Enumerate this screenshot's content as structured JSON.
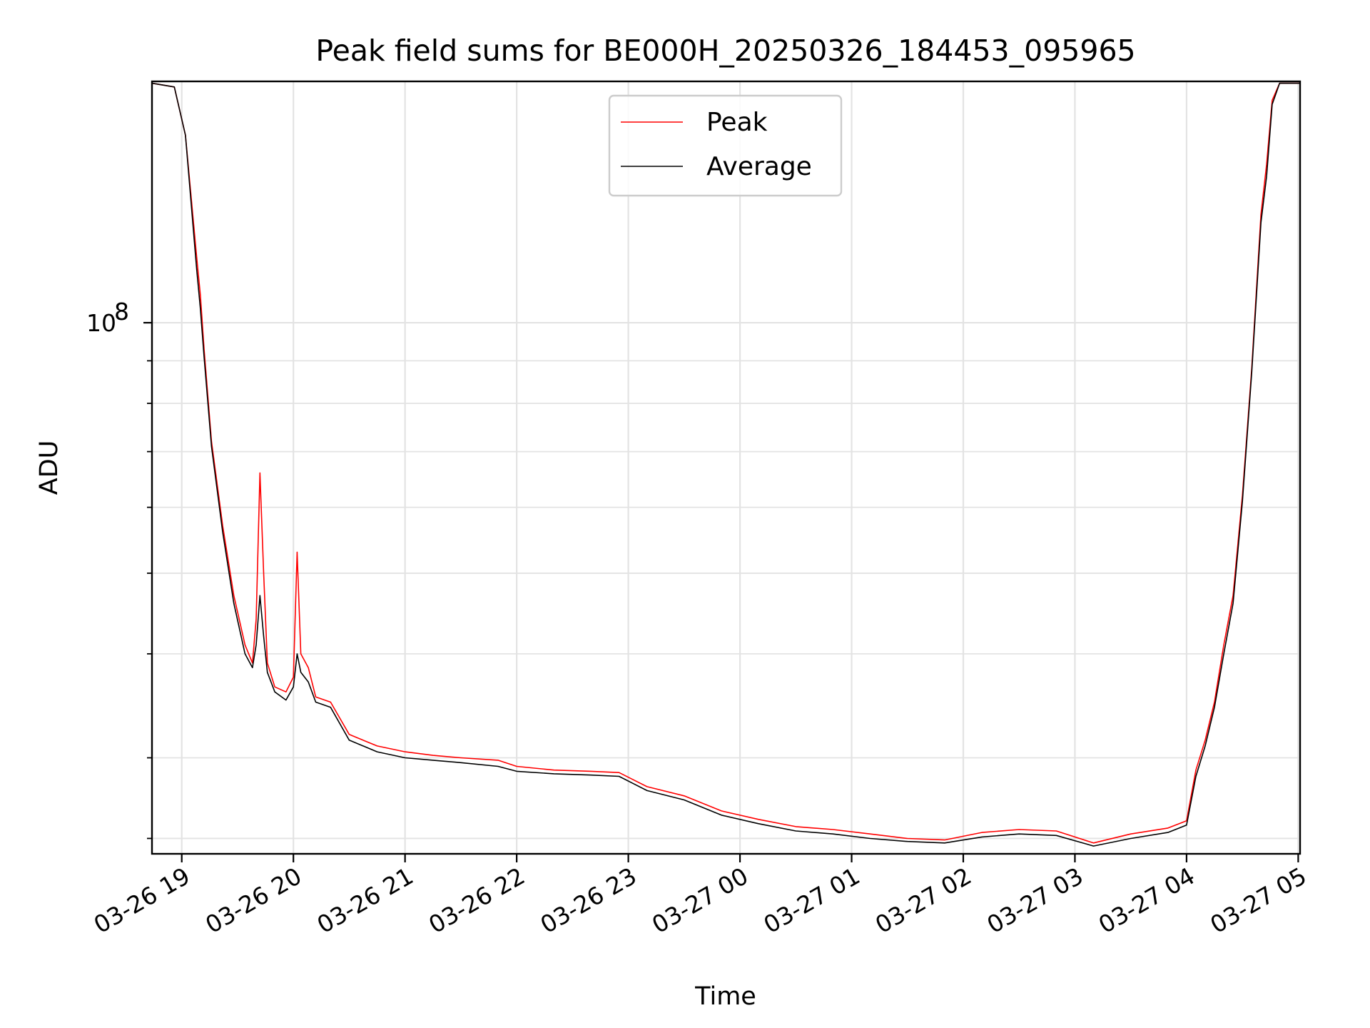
{
  "chart_data": {
    "type": "line",
    "title": "Peak field sums for BE000H_20250326_184453_095965",
    "xlabel": "Time",
    "ylabel": "ADU",
    "x_scale": "time",
    "y_scale": "log",
    "xlim": [
      "2025-03-26 18:44",
      "2025-03-27 05:01"
    ],
    "ylim": [
      23000000,
      195000000
    ],
    "x_ticks": [
      {
        "label": "03-26 19",
        "value": "2025-03-26 19:00"
      },
      {
        "label": "03-26 20",
        "value": "2025-03-26 20:00"
      },
      {
        "label": "03-26 21",
        "value": "2025-03-26 21:00"
      },
      {
        "label": "03-26 22",
        "value": "2025-03-26 22:00"
      },
      {
        "label": "03-26 23",
        "value": "2025-03-26 23:00"
      },
      {
        "label": "03-27 00",
        "value": "2025-03-27 00:00"
      },
      {
        "label": "03-27 01",
        "value": "2025-03-27 01:00"
      },
      {
        "label": "03-27 02",
        "value": "2025-03-27 02:00"
      },
      {
        "label": "03-27 03",
        "value": "2025-03-27 03:00"
      },
      {
        "label": "03-27 04",
        "value": "2025-03-27 04:00"
      },
      {
        "label": "03-27 05",
        "value": "2025-03-27 05:00"
      }
    ],
    "y_ticks": [
      {
        "base": "10",
        "exp": "8",
        "value": 100000000
      }
    ],
    "y_minor_ticks": [
      24000000,
      30000000,
      40000000,
      50000000,
      60000000,
      70000000,
      80000000,
      90000000,
      200000000
    ],
    "grid": true,
    "legend_position": "upper center",
    "series": [
      {
        "name": "Peak",
        "color": "#ff0000",
        "points": [
          [
            "2025-03-26 18:44",
            194000000
          ],
          [
            "2025-03-26 18:56",
            192000000
          ],
          [
            "2025-03-26 19:02",
            168000000
          ],
          [
            "2025-03-26 19:08",
            120000000
          ],
          [
            "2025-03-26 19:10",
            108000000
          ],
          [
            "2025-03-26 19:12",
            93000000
          ],
          [
            "2025-03-26 19:16",
            72000000
          ],
          [
            "2025-03-26 19:22",
            57000000
          ],
          [
            "2025-03-26 19:28",
            47000000
          ],
          [
            "2025-03-26 19:34",
            41000000
          ],
          [
            "2025-03-26 19:38",
            39000000
          ],
          [
            "2025-03-26 19:40",
            44000000
          ],
          [
            "2025-03-26 19:42",
            66000000
          ],
          [
            "2025-03-26 19:44",
            50000000
          ],
          [
            "2025-03-26 19:46",
            39000000
          ],
          [
            "2025-03-26 19:50",
            36500000
          ],
          [
            "2025-03-26 19:56",
            36000000
          ],
          [
            "2025-03-26 20:00",
            37500000
          ],
          [
            "2025-03-26 20:02",
            53000000
          ],
          [
            "2025-03-26 20:04",
            40000000
          ],
          [
            "2025-03-26 20:08",
            38500000
          ],
          [
            "2025-03-26 20:12",
            35500000
          ],
          [
            "2025-03-26 20:20",
            35000000
          ],
          [
            "2025-03-26 20:30",
            32000000
          ],
          [
            "2025-03-26 20:45",
            31000000
          ],
          [
            "2025-03-26 21:00",
            30500000
          ],
          [
            "2025-03-26 21:15",
            30200000
          ],
          [
            "2025-03-26 21:30",
            30000000
          ],
          [
            "2025-03-26 21:50",
            29800000
          ],
          [
            "2025-03-26 22:00",
            29300000
          ],
          [
            "2025-03-26 22:20",
            29000000
          ],
          [
            "2025-03-26 22:40",
            28900000
          ],
          [
            "2025-03-26 22:55",
            28800000
          ],
          [
            "2025-03-26 23:10",
            27700000
          ],
          [
            "2025-03-26 23:30",
            27000000
          ],
          [
            "2025-03-26 23:50",
            25900000
          ],
          [
            "2025-03-27 00:10",
            25300000
          ],
          [
            "2025-03-27 00:30",
            24800000
          ],
          [
            "2025-03-27 00:50",
            24600000
          ],
          [
            "2025-03-27 01:10",
            24300000
          ],
          [
            "2025-03-27 01:30",
            24000000
          ],
          [
            "2025-03-27 01:50",
            23900000
          ],
          [
            "2025-03-27 02:10",
            24400000
          ],
          [
            "2025-03-27 02:30",
            24600000
          ],
          [
            "2025-03-27 02:50",
            24500000
          ],
          [
            "2025-03-27 03:10",
            23700000
          ],
          [
            "2025-03-27 03:30",
            24300000
          ],
          [
            "2025-03-27 03:50",
            24700000
          ],
          [
            "2025-03-27 04:00",
            25200000
          ],
          [
            "2025-03-27 04:05",
            29000000
          ],
          [
            "2025-03-27 04:10",
            31500000
          ],
          [
            "2025-03-27 04:15",
            35000000
          ],
          [
            "2025-03-27 04:20",
            41000000
          ],
          [
            "2025-03-27 04:25",
            47000000
          ],
          [
            "2025-03-27 04:30",
            62000000
          ],
          [
            "2025-03-27 04:35",
            88000000
          ],
          [
            "2025-03-27 04:40",
            135000000
          ],
          [
            "2025-03-27 04:43",
            155000000
          ],
          [
            "2025-03-27 04:46",
            185000000
          ],
          [
            "2025-03-27 04:50",
            194000000
          ],
          [
            "2025-03-27 05:01",
            194000000
          ]
        ]
      },
      {
        "name": "Average",
        "color": "#000000",
        "points": [
          [
            "2025-03-26 18:44",
            194000000
          ],
          [
            "2025-03-26 18:56",
            192000000
          ],
          [
            "2025-03-26 19:02",
            168000000
          ],
          [
            "2025-03-26 19:08",
            116000000
          ],
          [
            "2025-03-26 19:10",
            104000000
          ],
          [
            "2025-03-26 19:12",
            91000000
          ],
          [
            "2025-03-26 19:16",
            71000000
          ],
          [
            "2025-03-26 19:22",
            56000000
          ],
          [
            "2025-03-26 19:28",
            46000000
          ],
          [
            "2025-03-26 19:34",
            40000000
          ],
          [
            "2025-03-26 19:38",
            38500000
          ],
          [
            "2025-03-26 19:40",
            41000000
          ],
          [
            "2025-03-26 19:42",
            47000000
          ],
          [
            "2025-03-26 19:44",
            42000000
          ],
          [
            "2025-03-26 19:46",
            38000000
          ],
          [
            "2025-03-26 19:50",
            36000000
          ],
          [
            "2025-03-26 19:56",
            35200000
          ],
          [
            "2025-03-26 20:00",
            36500000
          ],
          [
            "2025-03-26 20:02",
            40000000
          ],
          [
            "2025-03-26 20:04",
            38000000
          ],
          [
            "2025-03-26 20:08",
            37000000
          ],
          [
            "2025-03-26 20:12",
            35000000
          ],
          [
            "2025-03-26 20:20",
            34500000
          ],
          [
            "2025-03-26 20:30",
            31500000
          ],
          [
            "2025-03-26 20:45",
            30500000
          ],
          [
            "2025-03-26 21:00",
            30000000
          ],
          [
            "2025-03-26 21:15",
            29800000
          ],
          [
            "2025-03-26 21:30",
            29600000
          ],
          [
            "2025-03-26 21:50",
            29300000
          ],
          [
            "2025-03-26 22:00",
            28900000
          ],
          [
            "2025-03-26 22:20",
            28700000
          ],
          [
            "2025-03-26 22:40",
            28600000
          ],
          [
            "2025-03-26 22:55",
            28500000
          ],
          [
            "2025-03-26 23:10",
            27400000
          ],
          [
            "2025-03-26 23:30",
            26700000
          ],
          [
            "2025-03-26 23:50",
            25600000
          ],
          [
            "2025-03-27 00:10",
            25000000
          ],
          [
            "2025-03-27 00:30",
            24500000
          ],
          [
            "2025-03-27 00:50",
            24300000
          ],
          [
            "2025-03-27 01:10",
            24000000
          ],
          [
            "2025-03-27 01:30",
            23800000
          ],
          [
            "2025-03-27 01:50",
            23700000
          ],
          [
            "2025-03-27 02:10",
            24100000
          ],
          [
            "2025-03-27 02:30",
            24300000
          ],
          [
            "2025-03-27 02:50",
            24200000
          ],
          [
            "2025-03-27 03:10",
            23500000
          ],
          [
            "2025-03-27 03:30",
            24000000
          ],
          [
            "2025-03-27 03:50",
            24400000
          ],
          [
            "2025-03-27 04:00",
            24900000
          ],
          [
            "2025-03-27 04:05",
            28500000
          ],
          [
            "2025-03-27 04:10",
            31000000
          ],
          [
            "2025-03-27 04:15",
            34500000
          ],
          [
            "2025-03-27 04:20",
            40000000
          ],
          [
            "2025-03-27 04:25",
            46000000
          ],
          [
            "2025-03-27 04:30",
            61000000
          ],
          [
            "2025-03-27 04:35",
            87000000
          ],
          [
            "2025-03-27 04:40",
            132000000
          ],
          [
            "2025-03-27 04:43",
            150000000
          ],
          [
            "2025-03-27 04:46",
            183000000
          ],
          [
            "2025-03-27 04:50",
            194000000
          ],
          [
            "2025-03-27 05:01",
            194000000
          ]
        ]
      }
    ]
  }
}
